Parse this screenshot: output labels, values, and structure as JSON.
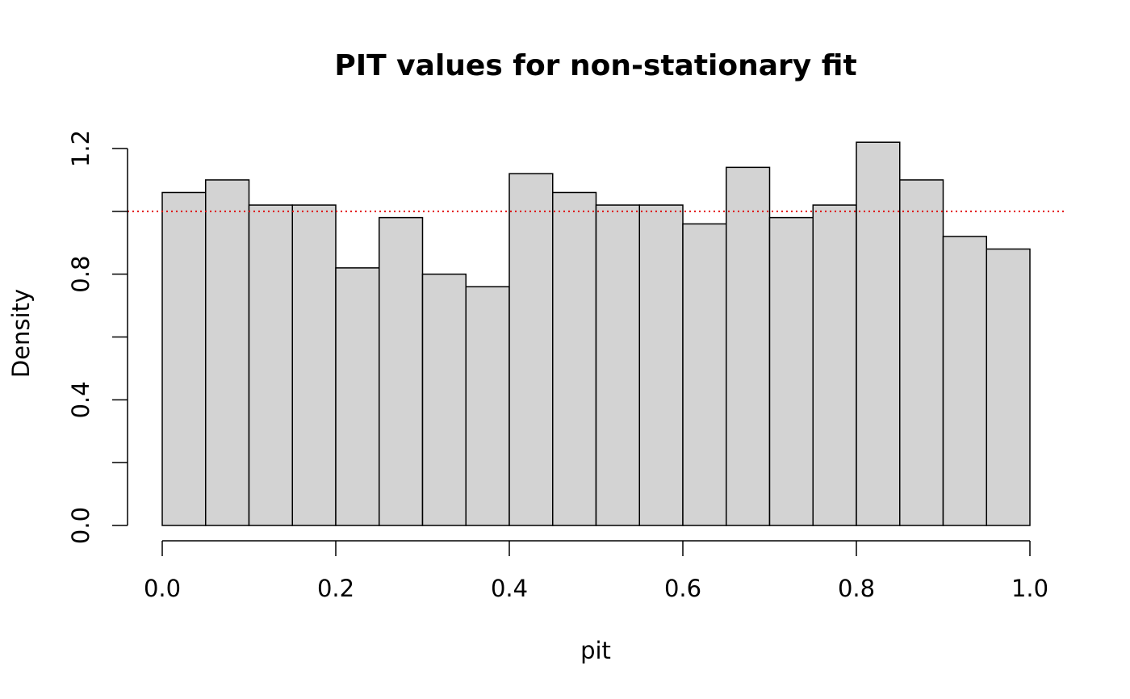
{
  "chart_data": {
    "type": "histogram",
    "title": "PIT values for non-stationary fit",
    "xlabel": "pit",
    "ylabel": "Density",
    "xlim": [
      0,
      1
    ],
    "ylim": [
      0,
      1.2
    ],
    "bin_edges": [
      0.0,
      0.05,
      0.1,
      0.15,
      0.2,
      0.25,
      0.3,
      0.35,
      0.4,
      0.45,
      0.5,
      0.55,
      0.6,
      0.65,
      0.7,
      0.75,
      0.8,
      0.85,
      0.9,
      0.95,
      1.0
    ],
    "values": [
      1.06,
      1.1,
      1.02,
      1.02,
      0.82,
      0.98,
      0.8,
      0.76,
      1.12,
      1.06,
      1.02,
      1.02,
      0.96,
      1.14,
      0.98,
      1.02,
      1.22,
      1.1,
      0.92,
      0.88
    ],
    "x_ticks": [
      "0.0",
      "0.2",
      "0.4",
      "0.6",
      "0.8",
      "1.0"
    ],
    "x_tick_values": [
      0.0,
      0.2,
      0.4,
      0.6,
      0.8,
      1.0
    ],
    "y_ticks": [
      "0.0",
      "0.4",
      "0.8",
      "1.2"
    ],
    "y_tick_values": [
      0.0,
      0.4,
      0.8,
      1.2
    ],
    "y_minor_tick_values": [
      0.2,
      0.6,
      1.0
    ],
    "reference_line": {
      "y": 1.0,
      "color": "#e00000",
      "style": "dotted"
    },
    "bar_fill": "#d3d3d3",
    "bar_stroke": "#000000",
    "grid": false
  }
}
